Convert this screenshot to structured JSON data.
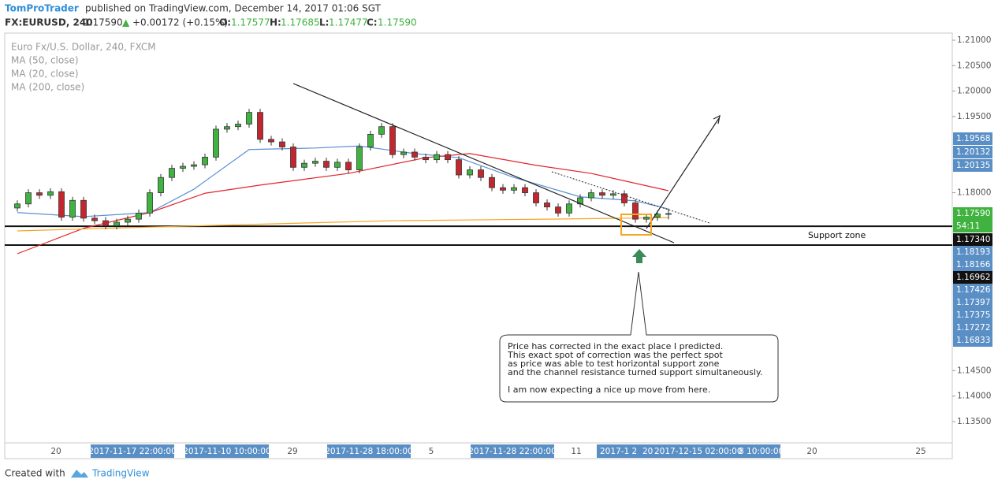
{
  "header": {
    "author": "TomProTrader",
    "published": "published on TradingView.com, December 14, 2017 01:06 SGT"
  },
  "quote": {
    "symbol": "FX:EURUSD, 240",
    "last": "1.17590",
    "arrow": "▲",
    "change": "+0.00172 (+0.15%)",
    "o_label": "O:",
    "o": "1.17577",
    "h_label": "H:",
    "h": "1.17685",
    "l_label": "L:",
    "l": "1.17477",
    "c_label": "C:",
    "c": "1.17590"
  },
  "legend": {
    "instrument": "Euro Fx/U.S. Dollar, 240, FXCM",
    "ma50": "MA (50, close)",
    "ma20": "MA (20, close)",
    "ma200": "MA (200, close)"
  },
  "chart_data": {
    "type": "candlestick",
    "ylim": [
      1.1308,
      1.2114
    ],
    "yticks": [
      {
        "value": 1.21,
        "label": "1.21000"
      },
      {
        "value": 1.205,
        "label": "1.20500"
      },
      {
        "value": 1.2,
        "label": "1.20000"
      },
      {
        "value": 1.195,
        "label": "1.19500"
      },
      {
        "value": 1.18,
        "label": "1.18000"
      },
      {
        "value": 1.145,
        "label": "1.14500"
      },
      {
        "value": 1.14,
        "label": "1.14000"
      },
      {
        "value": 1.135,
        "label": "1.13500"
      }
    ],
    "open": [
      1.177,
      1.1778,
      1.18,
      1.1795,
      1.1802,
      1.1752,
      1.1785,
      1.175,
      1.1745,
      1.1735,
      1.1742,
      1.1748,
      1.176,
      1.18,
      1.183,
      1.1848,
      1.1852,
      1.1855,
      1.187,
      1.1925,
      1.193,
      1.1935,
      1.1958,
      1.1905,
      1.19,
      1.189,
      1.185,
      1.1858,
      1.1862,
      1.185,
      1.186,
      1.1845,
      1.189,
      1.1915,
      1.193,
      1.1875,
      1.188,
      1.187,
      1.1865,
      1.1875,
      1.1865,
      1.1835,
      1.1845,
      1.183,
      1.181,
      1.1805,
      1.181,
      1.18,
      1.178,
      1.1772,
      1.176,
      1.1778,
      1.179,
      1.18,
      1.1795,
      1.1798,
      1.178,
      1.1748,
      1.1752,
      1.17577
    ],
    "high": [
      1.1785,
      1.1807,
      1.1807,
      1.1809,
      1.1809,
      1.1792,
      1.1792,
      1.1757,
      1.1752,
      1.1749,
      1.1755,
      1.1767,
      1.1807,
      1.1837,
      1.1855,
      1.1859,
      1.1862,
      1.1877,
      1.1932,
      1.1937,
      1.1942,
      1.1965,
      1.1965,
      1.1912,
      1.1907,
      1.1897,
      1.1865,
      1.1869,
      1.1869,
      1.1867,
      1.1867,
      1.1897,
      1.1922,
      1.1937,
      1.1937,
      1.1887,
      1.1887,
      1.1877,
      1.1882,
      1.1882,
      1.1872,
      1.1852,
      1.1852,
      1.1837,
      1.1817,
      1.1817,
      1.1817,
      1.1807,
      1.1787,
      1.1779,
      1.1785,
      1.1797,
      1.1807,
      1.1807,
      1.1805,
      1.1805,
      1.1787,
      1.1759,
      1.1765,
      1.17685
    ],
    "low": [
      1.1763,
      1.1771,
      1.1788,
      1.1788,
      1.1745,
      1.1745,
      1.1743,
      1.1738,
      1.1728,
      1.1728,
      1.1735,
      1.1741,
      1.1753,
      1.1793,
      1.1823,
      1.1841,
      1.1845,
      1.1848,
      1.1863,
      1.1918,
      1.1923,
      1.1928,
      1.1898,
      1.1893,
      1.1883,
      1.1843,
      1.1843,
      1.1851,
      1.1843,
      1.1843,
      1.1838,
      1.1838,
      1.1883,
      1.1908,
      1.1868,
      1.1868,
      1.1863,
      1.1858,
      1.1858,
      1.1858,
      1.1828,
      1.1828,
      1.1823,
      1.1803,
      1.1798,
      1.1798,
      1.1793,
      1.1773,
      1.1765,
      1.1753,
      1.1753,
      1.1771,
      1.1783,
      1.1788,
      1.1788,
      1.1773,
      1.1741,
      1.1741,
      1.1745,
      1.17477
    ],
    "close": [
      1.1778,
      1.18,
      1.1795,
      1.1802,
      1.1752,
      1.1785,
      1.175,
      1.1745,
      1.1735,
      1.1742,
      1.1748,
      1.176,
      1.18,
      1.183,
      1.1848,
      1.1852,
      1.1855,
      1.187,
      1.1925,
      1.193,
      1.1935,
      1.1958,
      1.1905,
      1.19,
      1.189,
      1.185,
      1.1858,
      1.1862,
      1.185,
      1.186,
      1.1845,
      1.189,
      1.1915,
      1.193,
      1.1875,
      1.188,
      1.187,
      1.1865,
      1.1875,
      1.1865,
      1.1835,
      1.1845,
      1.183,
      1.181,
      1.1805,
      1.181,
      1.18,
      1.178,
      1.1772,
      1.176,
      1.1778,
      1.179,
      1.18,
      1.1795,
      1.1798,
      1.178,
      1.1748,
      1.1752,
      1.1758,
      1.1759
    ],
    "up_color": "#3fb23f",
    "down_color": "#c4262e",
    "series": [
      {
        "name": "MA (20, close)",
        "color": "#5b8fd4",
        "x": [
          0,
          6,
          12,
          16,
          21,
          27,
          31,
          36,
          40,
          45,
          51,
          56,
          59
        ],
        "values": [
          1.1761,
          1.1753,
          1.1761,
          1.1807,
          1.1885,
          1.1888,
          1.1892,
          1.1877,
          1.1869,
          1.183,
          1.1792,
          1.1784,
          1.1768
        ]
      },
      {
        "name": "MA (50, close)",
        "color": "#e0252b",
        "x": [
          0,
          6,
          12,
          17,
          22,
          30,
          37,
          41,
          47,
          52,
          59
        ],
        "values": [
          1.168,
          1.173,
          1.1761,
          1.1799,
          1.1815,
          1.1838,
          1.1869,
          1.1877,
          1.1854,
          1.1838,
          1.1804
        ]
      },
      {
        "name": "MA (200, close)",
        "color": "#f5a623",
        "x": [
          0,
          13,
          27,
          34,
          48,
          59
        ],
        "values": [
          1.1725,
          1.1733,
          1.1741,
          1.1745,
          1.1748,
          1.1751
        ]
      }
    ],
    "support_zone": {
      "label": "Support zone",
      "top": 1.1734,
      "bottom": 1.1697
    }
  },
  "scale_badges": [
    "1.19568",
    "1.20132",
    "1.20135",
    "1.17590",
    "54:11",
    "1.17340",
    "1.18193",
    "1.18166",
    "1.16962",
    "1.17426",
    "1.17397",
    "1.17375",
    "1.17272",
    "1.16833"
  ],
  "x_labels": [
    "20",
    "2017-11-17 22:00:00",
    "2017-11-10 10:00:00",
    "29",
    "2017-11-28 18:00:00",
    "5",
    "2017-11-28 22:00:00",
    "11",
    "2017-1 2",
    "20",
    "2017-12-15 02:00:00",
    "8 10:00:00",
    "20",
    "25"
  ],
  "note": [
    "Price has corrected in the exact place I predicted.",
    "This exact spot of correction was the perfect spot",
    "as price was able to test horizontal support zone",
    "and the channel resistance turned support simultaneously.",
    "I am now expecting a nice up move from here."
  ],
  "footer": {
    "created": "Created with",
    "brand": "TradingView"
  }
}
